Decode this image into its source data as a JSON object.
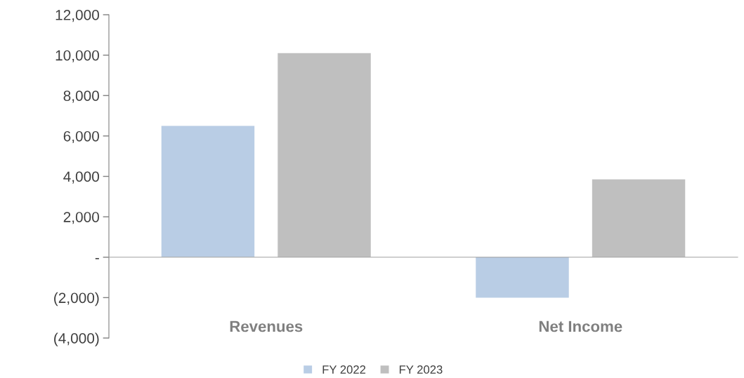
{
  "chart_data": {
    "type": "bar",
    "categories": [
      "Revenues",
      "Net Income"
    ],
    "series": [
      {
        "name": "FY 2022",
        "color": "#b9cde5",
        "values": [
          6500,
          -2000
        ]
      },
      {
        "name": "FY 2023",
        "color": "#bfbfbf",
        "values": [
          10100,
          3850
        ]
      }
    ],
    "ylim": [
      -4000,
      12000
    ],
    "yticks": [
      {
        "value": -4000,
        "label": "(4,000)"
      },
      {
        "value": -2000,
        "label": "(2,000)"
      },
      {
        "value": 0,
        "label": "-"
      },
      {
        "value": 2000,
        "label": "2,000"
      },
      {
        "value": 4000,
        "label": "4,000"
      },
      {
        "value": 6000,
        "label": "6,000"
      },
      {
        "value": 8000,
        "label": "8,000"
      },
      {
        "value": 10000,
        "label": "10,000"
      },
      {
        "value": 12000,
        "label": "12,000"
      }
    ],
    "legend": "bottom"
  }
}
